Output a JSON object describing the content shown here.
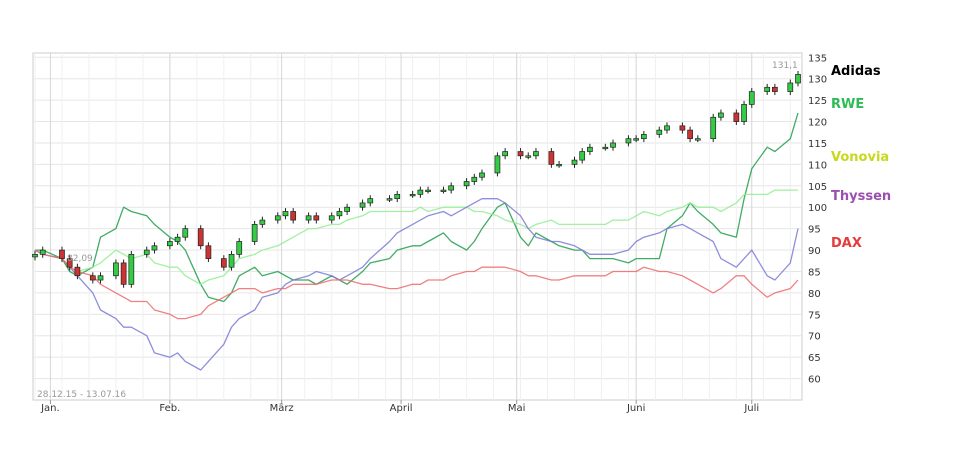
{
  "chart_data": {
    "type": "line",
    "title": "",
    "xlabel": "",
    "ylabel": "",
    "date_range_label": "28.12.15 - 13.07.16",
    "x_ticks": [
      "Jan.",
      "Feb.",
      "März",
      "April",
      "Mai",
      "Juni",
      "Juli"
    ],
    "y_ticks": [
      60,
      65,
      70,
      75,
      80,
      85,
      90,
      95,
      100,
      105,
      110,
      115,
      120,
      125,
      130,
      135
    ],
    "ylim": [
      55,
      136
    ],
    "grid": true,
    "legend_position": "right",
    "last_value_label": "131,1",
    "min_value_label": "82,09",
    "x_dates": [
      "2015-12-28",
      "2015-12-30",
      "2016-01-04",
      "2016-01-06",
      "2016-01-08",
      "2016-01-12",
      "2016-01-14",
      "2016-01-18",
      "2016-01-20",
      "2016-01-22",
      "2016-01-26",
      "2016-01-28",
      "2016-02-01",
      "2016-02-03",
      "2016-02-05",
      "2016-02-09",
      "2016-02-11",
      "2016-02-15",
      "2016-02-17",
      "2016-02-19",
      "2016-02-23",
      "2016-02-25",
      "2016-02-29",
      "2016-03-02",
      "2016-03-04",
      "2016-03-08",
      "2016-03-10",
      "2016-03-14",
      "2016-03-16",
      "2016-03-18",
      "2016-03-22",
      "2016-03-24",
      "2016-03-29",
      "2016-03-31",
      "2016-04-04",
      "2016-04-06",
      "2016-04-08",
      "2016-04-12",
      "2016-04-14",
      "2016-04-18",
      "2016-04-20",
      "2016-04-22",
      "2016-04-26",
      "2016-04-28",
      "2016-05-02",
      "2016-05-04",
      "2016-05-06",
      "2016-05-10",
      "2016-05-12",
      "2016-05-16",
      "2016-05-18",
      "2016-05-20",
      "2016-05-24",
      "2016-05-26",
      "2016-05-30",
      "2016-06-01",
      "2016-06-03",
      "2016-06-07",
      "2016-06-09",
      "2016-06-13",
      "2016-06-15",
      "2016-06-17",
      "2016-06-21",
      "2016-06-23",
      "2016-06-27",
      "2016-06-29",
      "2016-07-01",
      "2016-07-05",
      "2016-07-07",
      "2016-07-11",
      "2016-07-13"
    ],
    "series": [
      {
        "name": "Adidas",
        "color": "#000000",
        "kind": "candlestick",
        "values": [
          89,
          90,
          88,
          86,
          84,
          83,
          84,
          87,
          82,
          89,
          90,
          91,
          92,
          93,
          95,
          91,
          88,
          86,
          89,
          92,
          96,
          97,
          98,
          99,
          97,
          98,
          97,
          98,
          99,
          100,
          101,
          102,
          102,
          103,
          103,
          104,
          104,
          104,
          105,
          106,
          107,
          108,
          112,
          113,
          112,
          112,
          113,
          110,
          110,
          111,
          113,
          114,
          114,
          115,
          116,
          116,
          117,
          118,
          119,
          118,
          116,
          116,
          121,
          122,
          120,
          124,
          127,
          128,
          127,
          129,
          131
        ]
      },
      {
        "name": "RWE",
        "color": "#1e9e4a",
        "values": [
          90,
          90,
          88,
          85,
          84,
          86,
          93,
          95,
          100,
          99,
          98,
          96,
          93,
          92,
          90,
          82,
          79,
          78,
          80,
          84,
          86,
          84,
          85,
          84,
          83,
          83,
          82,
          84,
          83,
          82,
          85,
          87,
          88,
          90,
          91,
          91,
          92,
          94,
          92,
          90,
          92,
          95,
          100,
          101,
          93,
          91,
          94,
          92,
          91,
          90,
          90,
          88,
          88,
          88,
          87,
          88,
          88,
          88,
          95,
          98,
          101,
          99,
          96,
          94,
          93,
          102,
          109,
          114,
          113,
          116,
          122
        ]
      },
      {
        "name": "Vonovia",
        "color": "#90ee90",
        "values": [
          90,
          89,
          88,
          86,
          85,
          86,
          87,
          90,
          89,
          88,
          89,
          87,
          86,
          86,
          84,
          82,
          83,
          84,
          86,
          88,
          89,
          90,
          91,
          92,
          93,
          95,
          95,
          96,
          96,
          97,
          98,
          99,
          99,
          99,
          99,
          100,
          99,
          100,
          100,
          100,
          99,
          99,
          98,
          97,
          96,
          95,
          96,
          97,
          96,
          96,
          96,
          96,
          96,
          97,
          97,
          98,
          99,
          98,
          99,
          100,
          101,
          100,
          100,
          99,
          101,
          103,
          103,
          103,
          104,
          104,
          104
        ]
      },
      {
        "name": "Thyssen",
        "color": "#7a7ad6",
        "values": [
          90,
          89,
          88,
          86,
          84,
          80,
          76,
          74,
          72,
          72,
          70,
          66,
          65,
          66,
          64,
          62,
          64,
          68,
          72,
          74,
          76,
          79,
          80,
          82,
          83,
          84,
          85,
          84,
          83,
          84,
          86,
          88,
          92,
          94,
          96,
          97,
          98,
          99,
          98,
          100,
          101,
          102,
          102,
          101,
          98,
          95,
          93,
          92,
          92,
          91,
          90,
          89,
          89,
          89,
          90,
          92,
          93,
          94,
          95,
          96,
          95,
          94,
          92,
          88,
          86,
          88,
          90,
          84,
          83,
          87,
          95
        ]
      },
      {
        "name": "DAX",
        "color": "#ee6b6b",
        "values": [
          90,
          89,
          88,
          86,
          85,
          84,
          82,
          80,
          79,
          78,
          78,
          76,
          75,
          74,
          74,
          75,
          77,
          79,
          80,
          81,
          81,
          80,
          81,
          81,
          82,
          82,
          82,
          83,
          83,
          83,
          82,
          82,
          81,
          81,
          82,
          82,
          83,
          83,
          84,
          85,
          85,
          86,
          86,
          86,
          85,
          84,
          84,
          83,
          83,
          84,
          84,
          84,
          84,
          85,
          85,
          85,
          86,
          85,
          85,
          84,
          83,
          82,
          80,
          81,
          84,
          84,
          82,
          79,
          80,
          81,
          83
        ]
      }
    ]
  }
}
